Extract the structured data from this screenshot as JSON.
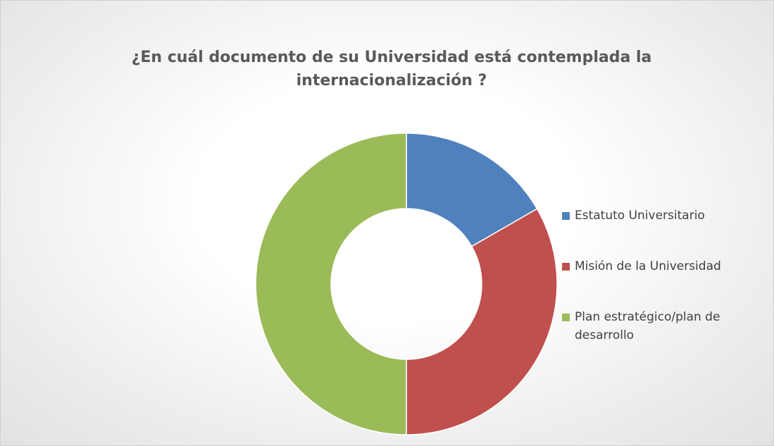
{
  "chart_data": {
    "type": "donut",
    "title": "¿En cuál documento de su Universidad está contemplada la internacionalización ?",
    "categories": [
      "Estatuto Universitario",
      "Misión de la Universidad",
      "Plan estratégico/plan de desarrollo"
    ],
    "values": [
      16.7,
      33.3,
      50
    ],
    "colors": [
      "#4f81bd",
      "#c0504d",
      "#9bbb59"
    ]
  }
}
